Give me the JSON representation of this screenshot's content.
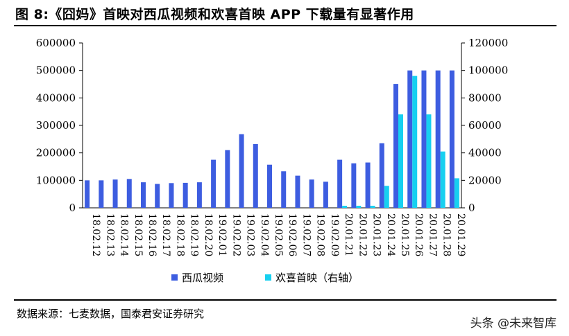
{
  "figure": {
    "title": "图 8:《囧妈》首映对西瓜视频和欢喜首映 APP 下载量有显著作用",
    "source": "数据来源：七麦数据，国泰君安证券研究",
    "watermark": "头条 @未来智库"
  },
  "colors": {
    "series1": "#3d5de0",
    "series2": "#17d0f0"
  },
  "chart_data": {
    "type": "bar",
    "title": "图 8:《囧妈》首映对西瓜视频和欢喜首映 APP 下载量有显著作用",
    "categories": [
      "18.02.12",
      "18.02.13",
      "18.02.14",
      "18.02.15",
      "18.02.16",
      "18.02.17",
      "18.02.18",
      "18.02.19",
      "18.02.20",
      "19.02.01",
      "19.02.02",
      "19.02.03",
      "19.02.04",
      "19.02.05",
      "19.02.06",
      "19.02.07",
      "19.02.08",
      "19.02.09",
      "20.01.21",
      "20.01.22",
      "20.01.23",
      "20.01.24",
      "20.01.25",
      "20.01.26",
      "20.01.27",
      "20.01.28",
      "20.01.29"
    ],
    "series": [
      {
        "name": "西瓜视频",
        "axis": "left",
        "values": [
          100000,
          100000,
          103000,
          105000,
          93000,
          87000,
          90000,
          91000,
          93000,
          175000,
          210000,
          268000,
          232000,
          157000,
          133000,
          117000,
          103000,
          95000,
          175000,
          162000,
          165000,
          235000,
          451000,
          500000,
          500000,
          500000,
          500000
        ]
      },
      {
        "name": "欢喜首映（右轴）",
        "axis": "right",
        "values": [
          0,
          0,
          0,
          0,
          0,
          0,
          0,
          0,
          0,
          0,
          0,
          0,
          0,
          0,
          0,
          0,
          0,
          0,
          1500,
          1500,
          1500,
          16000,
          68000,
          96000,
          68000,
          41000,
          21500
        ]
      }
    ],
    "y_left": {
      "min": 0,
      "max": 600000,
      "ticks": [
        "0",
        "100000",
        "200000",
        "300000",
        "400000",
        "500000",
        "600000"
      ]
    },
    "y_right": {
      "min": 0,
      "max": 120000,
      "ticks": [
        "0",
        "20000",
        "40000",
        "60000",
        "80000",
        "100000",
        "120000"
      ]
    },
    "legend": {
      "position": "bottom",
      "entries": [
        "西瓜视频",
        "欢喜首映（右轴）"
      ]
    },
    "grid": false
  }
}
